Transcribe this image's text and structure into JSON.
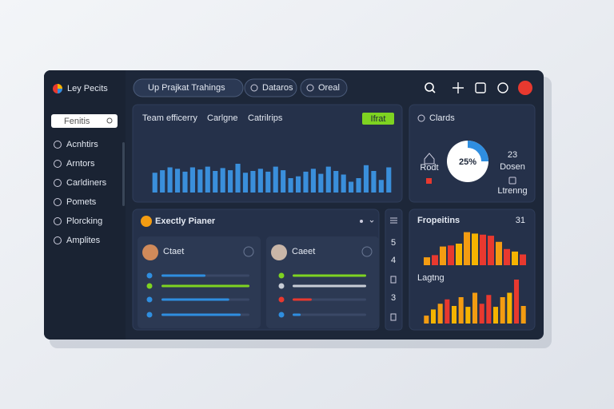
{
  "sidebar": {
    "brand": "Ley Pecits",
    "search": "Fenitis",
    "nav": [
      "Acnhtirs",
      "Arntors",
      "Carldiners",
      "Pomets",
      "Plorcking",
      "Amplites"
    ]
  },
  "topbar": {
    "title": "Up Prajkat Trahings",
    "buttons": [
      "Dataros",
      "Oreal"
    ]
  },
  "efficiency": {
    "tabs": [
      "Team efficerry",
      "Carlgne",
      "Catrilrips"
    ],
    "button": "Ifrat"
  },
  "cards": {
    "title": "Clards",
    "donut": {
      "value": 25,
      "label": "25%"
    },
    "left": "Rodt",
    "right_value": "23",
    "right_label": "Dosen",
    "right_note": "Ltrenng"
  },
  "planner": {
    "title": "Exectly Pianer",
    "people": [
      {
        "name": "Ctaet",
        "progress": [
          50,
          100,
          77,
          90
        ],
        "colors": [
          "#2f8ee0",
          "#7ed321",
          "#2f8ee0",
          "#2f8ee0"
        ]
      },
      {
        "name": "Caeet",
        "progress": [
          100,
          100,
          26,
          11
        ],
        "colors": [
          "#7ed321",
          "#c8cdd6",
          "#e8392f",
          "#2f8ee0"
        ]
      }
    ],
    "side": [
      "5",
      "4",
      "3"
    ]
  },
  "properties": {
    "title": "Fropeitins",
    "count": "31",
    "sublabel": "Lagtng"
  },
  "chart_data": [
    {
      "type": "bar",
      "values": [
        55,
        62,
        70,
        66,
        58,
        70,
        64,
        72,
        60,
        68,
        62,
        80,
        55,
        60,
        66,
        58,
        72,
        62,
        40,
        45,
        58,
        66,
        52,
        72,
        60,
        50,
        30,
        40,
        76,
        60,
        35,
        70
      ],
      "ylim": [
        0,
        100
      ],
      "color": "#3a8fdb"
    },
    {
      "type": "bar",
      "values": [
        22,
        28,
        52,
        55,
        60,
        92,
        88,
        85,
        82,
        65,
        45,
        38,
        30
      ],
      "ylim": [
        0,
        100
      ],
      "colors": [
        "#f39c12",
        "#e8392f",
        "#f39c12",
        "#e8392f",
        "#f5b400",
        "#f39c12",
        "#f5b400",
        "#e8392f",
        "#e8392f",
        "#f39c12",
        "#e8392f",
        "#f5b400",
        "#e8392f"
      ]
    },
    {
      "type": "bar",
      "values": [
        18,
        32,
        45,
        55,
        40,
        60,
        38,
        70,
        45,
        65,
        38,
        60,
        70,
        100,
        40
      ],
      "ylim": [
        0,
        100
      ],
      "colors": [
        "#f39c12",
        "#f5b400",
        "#f39c12",
        "#e8392f",
        "#f5b400",
        "#f39c12",
        "#f5b400",
        "#f39c12",
        "#e8392f",
        "#e8392f",
        "#f5b400",
        "#f39c12",
        "#f5b400",
        "#e8392f",
        "#f39c12"
      ]
    }
  ]
}
